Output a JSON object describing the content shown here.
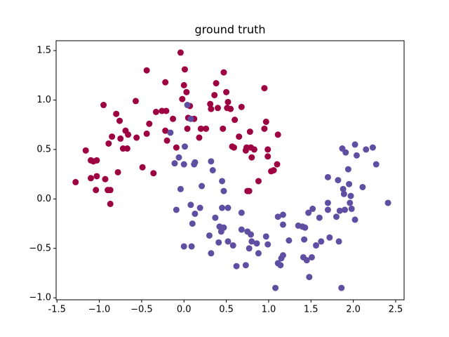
{
  "chart_data": {
    "type": "scatter",
    "title": "ground truth",
    "xlim": [
      -1.51,
      2.6
    ],
    "ylim": [
      -1.02,
      1.6
    ],
    "xticks": [
      -1.5,
      {
        "value": -1.0,
        "label": "−1.0"
      },
      {
        "value": -0.5,
        "label": "−0.5"
      },
      {
        "value": 0,
        "label": "0.0"
      },
      0.5,
      {
        "value": 1,
        "label": "1.0"
      },
      1.5,
      {
        "value": 2,
        "label": "2.0"
      },
      2.5
    ],
    "yticks": [
      {
        "value": -1,
        "label": "−1.0"
      },
      {
        "value": -0.5,
        "label": "−0.5"
      },
      {
        "value": 0,
        "label": "0.0"
      },
      0.5,
      {
        "value": 1,
        "label": "1.0"
      },
      1.5
    ],
    "series": [
      {
        "color": "#9e0142",
        "x": [
          -1.28,
          -1.16,
          -1.1,
          -1.1,
          -1.04,
          -1.07,
          -1.03,
          -1.03,
          -0.95,
          -0.93,
          -0.9,
          -0.87,
          -0.89,
          -0.87,
          -0.85,
          -0.8,
          -0.78,
          -0.76,
          -0.75,
          -0.72,
          -0.69,
          -0.67,
          -0.66,
          -0.57,
          -0.56,
          -0.49,
          -0.44,
          -0.44,
          -0.41,
          -0.36,
          -0.33,
          -0.26,
          -0.22,
          -0.21,
          -0.22,
          -0.2,
          -0.13,
          -0.09,
          -0.04,
          -0.02,
          0.0,
          0.01,
          0.03,
          0.04,
          0.05,
          0.07,
          0.12,
          0.18,
          0.2,
          0.26,
          0.31,
          0.32,
          0.36,
          0.38,
          0.4,
          0.47,
          0.46,
          0.5,
          0.51,
          0.52,
          0.55,
          0.57,
          0.59,
          0.6,
          0.65,
          0.68,
          0.73,
          0.74,
          0.78,
          0.8,
          0.79,
          0.83,
          0.95,
          0.95,
          0.97,
          0.99,
          0.99,
          1.03,
          1.06,
          1.1,
          1.11,
          0.75,
          0.77,
          0.88
        ],
        "y": [
          0.17,
          0.49,
          0.39,
          0.21,
          0.09,
          0.38,
          0.23,
          0.39,
          0.95,
          0.2,
          0.09,
          -0.05,
          0.56,
          0.09,
          0.63,
          0.86,
          0.27,
          0.79,
          0.61,
          0.51,
          0.69,
          0.51,
          0.65,
          0.99,
          0.62,
          0.32,
          1.3,
          0.66,
          0.76,
          0.26,
          0.88,
          0.89,
          1.18,
          0.89,
          0.69,
          0.59,
          0.81,
          0.52,
          1.48,
          1.01,
          1.15,
          1.31,
          1.08,
          0.71,
          0.82,
          0.94,
          0.81,
          0.62,
          0.71,
          0.71,
          0.96,
          0.91,
          1.05,
          1.17,
          0.92,
          1.28,
          0.71,
          1.08,
          0.92,
          0.98,
          0.91,
          0.53,
          0.52,
          0.8,
          0.63,
          0.93,
          0.49,
          0.52,
          0.68,
          0.42,
          0.52,
          0.5,
          1.12,
          0.71,
          0.78,
          0.5,
          0.43,
          0.28,
          0.29,
          0.35,
          0.65,
          0.08,
          0.08,
          0.18
        ]
      },
      {
        "color": "#5e4fa2",
        "x": [
          -0.16,
          -0.11,
          0.01,
          0.04,
          0.08,
          0.12,
          0.13,
          0.0,
          -0.09,
          -0.04,
          0.0,
          0.08,
          0.09,
          0.1,
          0.19,
          0.13,
          0.21,
          0.3,
          0.32,
          0.34,
          0.32,
          0.37,
          0.41,
          0.42,
          0.45,
          0.45,
          0.47,
          0.47,
          0.44,
          0.52,
          0.52,
          0.58,
          0.62,
          0.68,
          0.68,
          0.73,
          0.75,
          0.77,
          0.79,
          0.8,
          0.86,
          0.88,
          0.97,
          0.99,
          1.08,
          1.11,
          1.11,
          1.15,
          1.17,
          1.17,
          1.14,
          1.17,
          1.24,
          1.35,
          1.4,
          1.42,
          1.43,
          1.41,
          1.45,
          1.47,
          1.48,
          1.51,
          1.52,
          1.56,
          1.6,
          1.62,
          1.7,
          1.7,
          1.7,
          1.72,
          1.8,
          1.82,
          1.83,
          1.84,
          1.86,
          1.87,
          1.88,
          1.89,
          1.9,
          1.91,
          1.94,
          1.95,
          1.96,
          1.97,
          1.98,
          2.02,
          2.02,
          2.04,
          2.11,
          2.15,
          2.23,
          2.27,
          2.41,
          -0.06
        ],
        "y": [
          0.67,
          0.36,
          0.53,
          0.95,
          0.81,
          0.35,
          0.37,
          0.35,
          -0.11,
          0.1,
          -0.48,
          -0.06,
          -0.48,
          -0.25,
          -0.09,
          -0.15,
          0.13,
          -0.37,
          0.38,
          0.29,
          -0.55,
          -0.19,
          -0.44,
          -0.28,
          -0.09,
          0.18,
          0.08,
          -0.29,
          -0.33,
          -0.43,
          -0.09,
          -0.47,
          -0.68,
          -0.31,
          -0.14,
          -0.67,
          -0.33,
          -0.5,
          -0.36,
          -0.43,
          -0.45,
          -0.55,
          -0.38,
          -0.46,
          -0.9,
          -0.18,
          -0.65,
          -0.6,
          -0.16,
          -0.57,
          -0.67,
          -0.26,
          -0.42,
          -0.27,
          -0.28,
          -0.41,
          -0.29,
          -0.59,
          -0.62,
          -0.14,
          -0.79,
          -0.59,
          -0.1,
          -0.47,
          -0.19,
          -0.43,
          0.22,
          -0.11,
          -0.04,
          -0.39,
          -0.18,
          0.19,
          -0.43,
          -0.12,
          -0.9,
          0.51,
          0.1,
          0.05,
          -0.11,
          0.47,
          0.3,
          0.15,
          -0.04,
          0.03,
          -0.1,
          -0.21,
          0.55,
          0.44,
          0.12,
          0.5,
          0.52,
          0.35,
          -0.04,
          0.42
        ]
      }
    ]
  }
}
